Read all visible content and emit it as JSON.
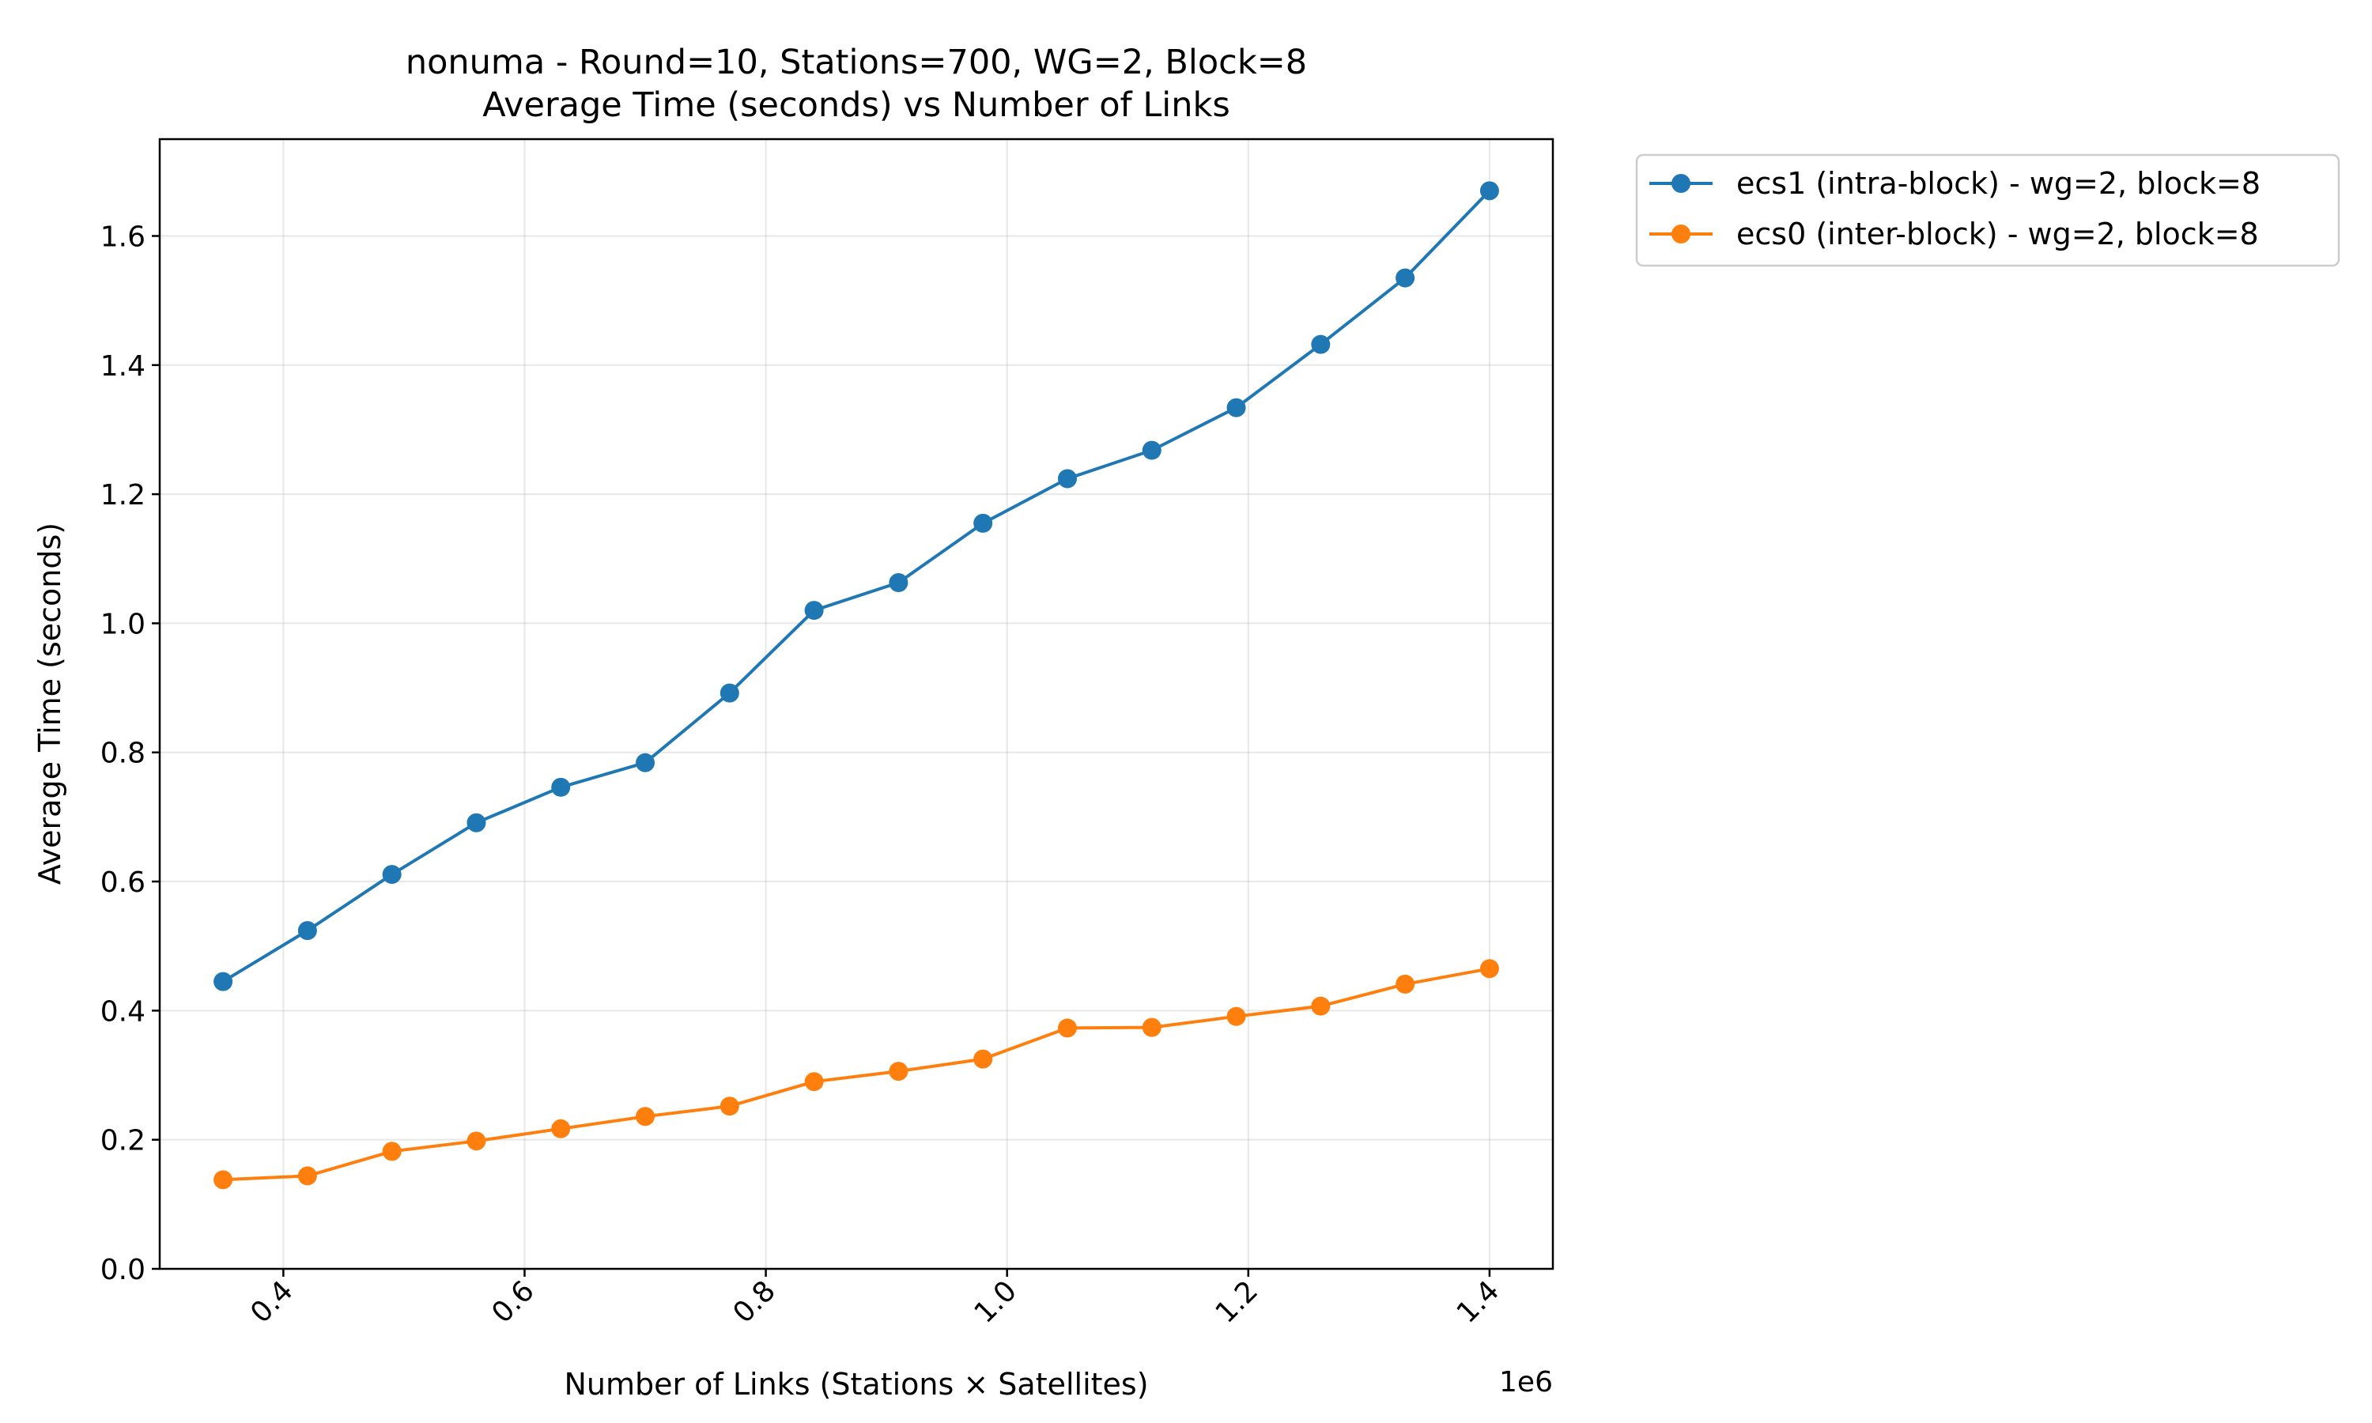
{
  "chart_data": {
    "type": "line",
    "title": "nonuma - Round=10, Stations=700, WG=2, Block=8",
    "subtitle": "Average Time (seconds) vs Number of Links",
    "xlabel": "Number of Links (Stations × Satellites)",
    "ylabel": "Average Time (seconds)",
    "x_offset_label": "1e6",
    "xlim": [
      0.2975,
      1.4525
    ],
    "ylim": [
      0,
      1.75
    ],
    "xticks": [
      0.4,
      0.6,
      0.8,
      1.0,
      1.2,
      1.4
    ],
    "xtick_labels": [
      "0.4",
      "0.6",
      "0.8",
      "1.0",
      "1.2",
      "1.4"
    ],
    "yticks": [
      0.0,
      0.2,
      0.4,
      0.6,
      0.8,
      1.0,
      1.2,
      1.4,
      1.6
    ],
    "ytick_labels": [
      "0.0",
      "0.2",
      "0.4",
      "0.6",
      "0.8",
      "1.0",
      "1.2",
      "1.4",
      "1.6"
    ],
    "grid": true,
    "legend_position": "outside right, top",
    "x": [
      0.35,
      0.42,
      0.49,
      0.56,
      0.63,
      0.7,
      0.77,
      0.84,
      0.91,
      0.98,
      1.05,
      1.12,
      1.19,
      1.26,
      1.33,
      1.4
    ],
    "series": [
      {
        "name": "ecs1 (intra-block) - wg=2, block=8",
        "color": "#1f77b4",
        "values": [
          0.445,
          0.524,
          0.611,
          0.691,
          0.746,
          0.784,
          0.892,
          1.02,
          1.063,
          1.155,
          1.224,
          1.268,
          1.334,
          1.432,
          1.535,
          1.67
        ]
      },
      {
        "name": "ecs0 (inter-block) - wg=2, block=8",
        "color": "#ff7f0e",
        "values": [
          0.138,
          0.144,
          0.182,
          0.198,
          0.217,
          0.236,
          0.252,
          0.29,
          0.306,
          0.325,
          0.373,
          0.374,
          0.391,
          0.407,
          0.441,
          0.465
        ]
      }
    ]
  }
}
